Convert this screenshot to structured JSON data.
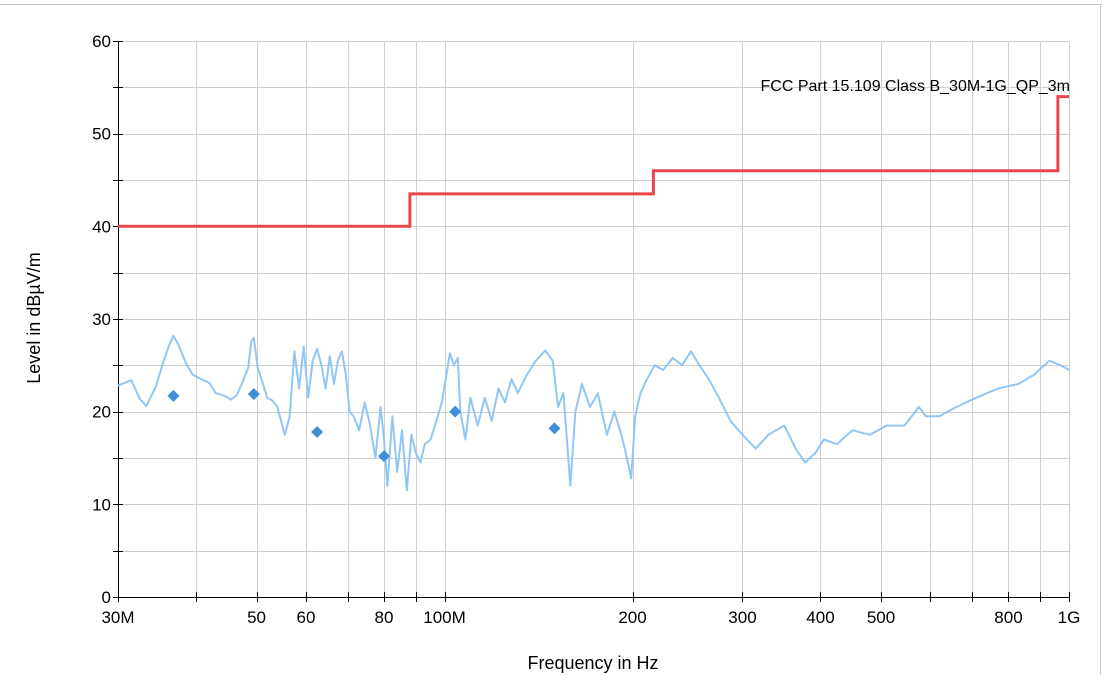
{
  "chart_data": {
    "type": "line",
    "xlabel": "Frequency in Hz",
    "ylabel": "Level in dBµV/m",
    "xscale": "log",
    "xlim": [
      30000000,
      1000000000
    ],
    "ylim": [
      0,
      60
    ],
    "grid": true,
    "x_tick_labels": [
      {
        "value": 30000000,
        "label": "30M"
      },
      {
        "value": 50000000,
        "label": "50"
      },
      {
        "value": 60000000,
        "label": "60"
      },
      {
        "value": 80000000,
        "label": "80"
      },
      {
        "value": 100000000,
        "label": "100M"
      },
      {
        "value": 200000000,
        "label": "200"
      },
      {
        "value": 300000000,
        "label": "300"
      },
      {
        "value": 400000000,
        "label": "400"
      },
      {
        "value": 500000000,
        "label": "500"
      },
      {
        "value": 800000000,
        "label": "800"
      },
      {
        "value": 1000000000,
        "label": "1G"
      }
    ],
    "x_minor_ticks": [
      40000000,
      70000000,
      90000000,
      600000000,
      700000000,
      900000000
    ],
    "y_tick_labels": [
      {
        "value": 0,
        "label": "0"
      },
      {
        "value": 10,
        "label": "10"
      },
      {
        "value": 20,
        "label": "20"
      },
      {
        "value": 30,
        "label": "30"
      },
      {
        "value": 40,
        "label": "40"
      },
      {
        "value": 50,
        "label": "50"
      },
      {
        "value": 60,
        "label": "60"
      }
    ],
    "y_minor_ticks": [
      5,
      15,
      25,
      35,
      45,
      55
    ],
    "limit_line": {
      "name": "FCC Part 15.109 Class B_30M-1G_QP_3m",
      "color": "#e8474c",
      "points": [
        [
          30000000,
          40
        ],
        [
          88000000,
          40
        ],
        [
          88000000,
          43.5
        ],
        [
          216000000,
          43.5
        ],
        [
          216000000,
          46
        ],
        [
          960000000,
          46
        ],
        [
          960000000,
          54
        ],
        [
          1000000000,
          54
        ]
      ]
    },
    "trace": {
      "color": "#92c6f5",
      "points": [
        [
          30000000,
          22.8
        ],
        [
          31500000,
          23.4
        ],
        [
          32500000,
          21.4
        ],
        [
          33300000,
          20.6
        ],
        [
          34500000,
          22.7
        ],
        [
          35500000,
          25.5
        ],
        [
          36200000,
          27.1
        ],
        [
          36800000,
          28.2
        ],
        [
          37500000,
          27.2
        ],
        [
          38500000,
          25.3
        ],
        [
          39500000,
          24.0
        ],
        [
          40800000,
          23.5
        ],
        [
          42000000,
          23.1
        ],
        [
          43000000,
          22.0
        ],
        [
          44500000,
          21.7
        ],
        [
          45500000,
          21.3
        ],
        [
          46500000,
          21.8
        ],
        [
          47500000,
          23.2
        ],
        [
          48500000,
          24.8
        ],
        [
          49000000,
          27.5
        ],
        [
          49500000,
          28.0
        ],
        [
          50200000,
          24.8
        ],
        [
          51200000,
          23.0
        ],
        [
          52000000,
          21.5
        ],
        [
          53000000,
          21.2
        ],
        [
          54000000,
          20.5
        ],
        [
          55500000,
          17.5
        ],
        [
          56500000,
          19.5
        ],
        [
          57500000,
          26.5
        ],
        [
          58500000,
          22.5
        ],
        [
          59500000,
          27.0
        ],
        [
          60500000,
          21.5
        ],
        [
          61500000,
          25.5
        ],
        [
          62500000,
          26.8
        ],
        [
          63500000,
          25.0
        ],
        [
          64500000,
          22.5
        ],
        [
          65500000,
          26.0
        ],
        [
          66500000,
          23.0
        ],
        [
          67500000,
          25.5
        ],
        [
          68500000,
          26.5
        ],
        [
          69500000,
          24.0
        ],
        [
          70500000,
          20.0
        ],
        [
          71500000,
          19.5
        ],
        [
          73000000,
          18.0
        ],
        [
          74500000,
          21.0
        ],
        [
          76000000,
          18.5
        ],
        [
          77500000,
          15.0
        ],
        [
          79000000,
          20.5
        ],
        [
          80000000,
          17.0
        ],
        [
          81000000,
          12.0
        ],
        [
          82500000,
          19.5
        ],
        [
          84000000,
          13.5
        ],
        [
          85500000,
          18.0
        ],
        [
          87000000,
          11.5
        ],
        [
          88500000,
          17.5
        ],
        [
          90000000,
          15.5
        ],
        [
          91500000,
          14.5
        ],
        [
          93000000,
          16.5
        ],
        [
          95000000,
          17.0
        ],
        [
          97000000,
          19.0
        ],
        [
          99000000,
          21.0
        ],
        [
          101000000,
          24.5
        ],
        [
          102000000,
          26.3
        ],
        [
          103500000,
          25.0
        ],
        [
          105000000,
          25.8
        ],
        [
          106000000,
          20.0
        ],
        [
          108000000,
          17.0
        ],
        [
          110000000,
          21.5
        ],
        [
          113000000,
          18.5
        ],
        [
          116000000,
          21.5
        ],
        [
          119000000,
          19.0
        ],
        [
          122000000,
          22.5
        ],
        [
          125000000,
          21.0
        ],
        [
          128000000,
          23.5
        ],
        [
          131000000,
          22.0
        ],
        [
          135000000,
          23.8
        ],
        [
          140000000,
          25.5
        ],
        [
          145000000,
          26.6
        ],
        [
          149000000,
          25.5
        ],
        [
          152000000,
          20.5
        ],
        [
          155000000,
          22.0
        ],
        [
          157000000,
          17.0
        ],
        [
          159000000,
          12.0
        ],
        [
          162000000,
          20.0
        ],
        [
          166000000,
          23.0
        ],
        [
          171000000,
          20.5
        ],
        [
          176000000,
          22.0
        ],
        [
          182000000,
          17.5
        ],
        [
          187000000,
          20.0
        ],
        [
          192000000,
          17.5
        ],
        [
          196000000,
          15.0
        ],
        [
          199000000,
          12.8
        ],
        [
          202000000,
          19.5
        ],
        [
          206000000,
          22.0
        ],
        [
          211000000,
          23.5
        ],
        [
          217000000,
          25.0
        ],
        [
          224000000,
          24.5
        ],
        [
          232000000,
          25.8
        ],
        [
          240000000,
          25.0
        ],
        [
          248000000,
          26.5
        ],
        [
          256000000,
          25.0
        ],
        [
          265000000,
          23.5
        ],
        [
          275000000,
          21.5
        ],
        [
          287000000,
          19.0
        ],
        [
          300000000,
          17.5
        ],
        [
          315000000,
          16.0
        ],
        [
          330000000,
          17.5
        ],
        [
          350000000,
          18.5
        ],
        [
          365000000,
          16.0
        ],
        [
          378000000,
          14.5
        ],
        [
          392000000,
          15.5
        ],
        [
          405000000,
          17.0
        ],
        [
          425000000,
          16.5
        ],
        [
          450000000,
          18.0
        ],
        [
          480000000,
          17.5
        ],
        [
          510000000,
          18.5
        ],
        [
          545000000,
          18.5
        ],
        [
          575000000,
          20.5
        ],
        [
          590000000,
          19.5
        ],
        [
          620000000,
          19.5
        ],
        [
          660000000,
          20.5
        ],
        [
          710000000,
          21.5
        ],
        [
          770000000,
          22.5
        ],
        [
          830000000,
          23.0
        ],
        [
          880000000,
          24.0
        ],
        [
          930000000,
          25.5
        ],
        [
          970000000,
          25.0
        ],
        [
          1000000000,
          24.5
        ]
      ]
    },
    "markers": {
      "color": "#3f8fd8",
      "points": [
        [
          36800000,
          21.7
        ],
        [
          49500000,
          21.9
        ],
        [
          62500000,
          17.8
        ],
        [
          80000000,
          15.2
        ],
        [
          104000000,
          20.0
        ],
        [
          150000000,
          18.2
        ]
      ]
    }
  }
}
